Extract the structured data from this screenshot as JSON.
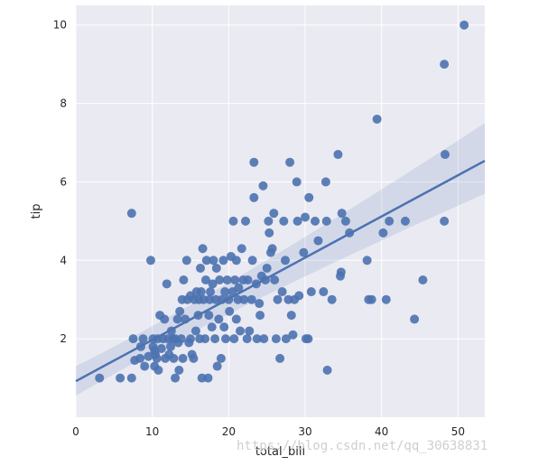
{
  "chart_data": {
    "type": "scatter",
    "title": "",
    "xlabel": "total_bill",
    "ylabel": "tip",
    "xlim": [
      0,
      53.5
    ],
    "ylim": [
      0.0,
      10.5
    ],
    "xticks": [
      "0",
      "10",
      "20",
      "30",
      "40",
      "50"
    ],
    "yticks": [
      "2",
      "4",
      "6",
      "8",
      "10"
    ],
    "grid": true,
    "colors": {
      "background": "#eaeaf2",
      "grid": "#ffffff",
      "points": "#4c72b0",
      "line": "#4c72b0",
      "band": "#4c72b0"
    },
    "regression": {
      "intercept": 0.92,
      "slope": 0.105,
      "ci_lower_at_xmin": 0.55,
      "ci_upper_at_xmin": 1.3,
      "ci_lower_at_xmax": 5.7,
      "ci_upper_at_xmax": 7.5
    },
    "points": [
      [
        3.1,
        1.0
      ],
      [
        5.8,
        1.0
      ],
      [
        7.3,
        1.0
      ],
      [
        7.3,
        5.2
      ],
      [
        7.5,
        2.0
      ],
      [
        7.7,
        1.45
      ],
      [
        8.4,
        1.5
      ],
      [
        8.5,
        1.8
      ],
      [
        8.8,
        2.0
      ],
      [
        9.0,
        1.3
      ],
      [
        9.5,
        1.55
      ],
      [
        9.8,
        4.0
      ],
      [
        10.1,
        1.8
      ],
      [
        10.1,
        2.0
      ],
      [
        10.3,
        1.7
      ],
      [
        10.3,
        1.3
      ],
      [
        10.4,
        1.6
      ],
      [
        10.6,
        1.5
      ],
      [
        10.7,
        2.0
      ],
      [
        10.8,
        1.2
      ],
      [
        11.0,
        2.6
      ],
      [
        11.2,
        1.75
      ],
      [
        11.4,
        2.0
      ],
      [
        11.6,
        2.5
      ],
      [
        11.7,
        1.5
      ],
      [
        11.9,
        3.4
      ],
      [
        12.0,
        2.0
      ],
      [
        12.2,
        1.6
      ],
      [
        12.4,
        1.8
      ],
      [
        12.5,
        2.2
      ],
      [
        12.7,
        2.0
      ],
      [
        12.8,
        1.5
      ],
      [
        13.0,
        2.0
      ],
      [
        13.0,
        1.0
      ],
      [
        13.3,
        2.5
      ],
      [
        13.4,
        1.9
      ],
      [
        13.5,
        1.2
      ],
      [
        13.6,
        2.7
      ],
      [
        13.8,
        2.0
      ],
      [
        13.9,
        3.0
      ],
      [
        14.0,
        1.5
      ],
      [
        14.1,
        3.5
      ],
      [
        14.3,
        2.5
      ],
      [
        14.5,
        4.0
      ],
      [
        14.6,
        3.0
      ],
      [
        14.8,
        1.9
      ],
      [
        15.0,
        2.0
      ],
      [
        15.0,
        3.1
      ],
      [
        15.2,
        1.6
      ],
      [
        15.4,
        1.5
      ],
      [
        15.5,
        3.0
      ],
      [
        15.7,
        2.2
      ],
      [
        15.8,
        3.2
      ],
      [
        16.0,
        2.6
      ],
      [
        16.1,
        3.0
      ],
      [
        16.2,
        2.0
      ],
      [
        16.3,
        3.8
      ],
      [
        16.4,
        3.2
      ],
      [
        16.5,
        1.0
      ],
      [
        16.6,
        4.3
      ],
      [
        16.7,
        3.0
      ],
      [
        16.9,
        2.0
      ],
      [
        17.0,
        3.5
      ],
      [
        17.1,
        4.0
      ],
      [
        17.3,
        1.0
      ],
      [
        17.4,
        2.6
      ],
      [
        17.5,
        3.0
      ],
      [
        17.6,
        3.2
      ],
      [
        17.8,
        2.3
      ],
      [
        17.9,
        3.4
      ],
      [
        18.0,
        4.0
      ],
      [
        18.2,
        2.0
      ],
      [
        18.3,
        3.0
      ],
      [
        18.4,
        3.8
      ],
      [
        18.5,
        1.3
      ],
      [
        18.7,
        2.5
      ],
      [
        18.8,
        3.5
      ],
      [
        19.0,
        1.5
      ],
      [
        19.1,
        3.0
      ],
      [
        19.3,
        4.0
      ],
      [
        19.4,
        2.3
      ],
      [
        19.5,
        3.2
      ],
      [
        19.6,
        2.0
      ],
      [
        19.8,
        3.5
      ],
      [
        20.0,
        3.0
      ],
      [
        20.1,
        2.7
      ],
      [
        20.3,
        4.1
      ],
      [
        20.5,
        3.2
      ],
      [
        20.6,
        5.0
      ],
      [
        20.7,
        2.0
      ],
      [
        20.8,
        3.5
      ],
      [
        21.0,
        4.0
      ],
      [
        21.0,
        2.5
      ],
      [
        21.2,
        3.0
      ],
      [
        21.3,
        3.3
      ],
      [
        21.5,
        2.2
      ],
      [
        21.7,
        4.3
      ],
      [
        21.9,
        3.5
      ],
      [
        22.0,
        3.0
      ],
      [
        22.2,
        5.0
      ],
      [
        22.4,
        2.0
      ],
      [
        22.5,
        3.5
      ],
      [
        22.7,
        2.2
      ],
      [
        23.0,
        3.0
      ],
      [
        23.1,
        4.0
      ],
      [
        23.3,
        5.6
      ],
      [
        23.3,
        6.5
      ],
      [
        23.6,
        3.4
      ],
      [
        23.7,
        2.0
      ],
      [
        24.0,
        2.9
      ],
      [
        24.1,
        2.6
      ],
      [
        24.3,
        3.6
      ],
      [
        24.5,
        5.9
      ],
      [
        24.6,
        2.0
      ],
      [
        24.8,
        3.5
      ],
      [
        25.0,
        3.8
      ],
      [
        25.2,
        5.0
      ],
      [
        25.3,
        4.7
      ],
      [
        25.5,
        4.2
      ],
      [
        25.7,
        4.3
      ],
      [
        25.9,
        5.2
      ],
      [
        26.0,
        3.5
      ],
      [
        26.2,
        2.0
      ],
      [
        26.4,
        3.0
      ],
      [
        26.7,
        1.5
      ],
      [
        27.0,
        3.2
      ],
      [
        27.2,
        5.0
      ],
      [
        27.4,
        4.0
      ],
      [
        27.5,
        2.0
      ],
      [
        27.8,
        3.0
      ],
      [
        28.0,
        6.5
      ],
      [
        28.2,
        2.6
      ],
      [
        28.4,
        2.1
      ],
      [
        28.6,
        3.0
      ],
      [
        28.9,
        6.0
      ],
      [
        29.0,
        5.0
      ],
      [
        29.2,
        3.1
      ],
      [
        29.8,
        4.2
      ],
      [
        30.0,
        5.1
      ],
      [
        30.1,
        2.0
      ],
      [
        30.4,
        2.0
      ],
      [
        30.5,
        5.6
      ],
      [
        30.8,
        3.2
      ],
      [
        31.3,
        5.0
      ],
      [
        31.7,
        4.5
      ],
      [
        32.4,
        3.2
      ],
      [
        32.7,
        6.0
      ],
      [
        32.8,
        5.0
      ],
      [
        32.9,
        1.2
      ],
      [
        33.5,
        3.0
      ],
      [
        34.3,
        6.7
      ],
      [
        34.6,
        3.6
      ],
      [
        34.7,
        3.7
      ],
      [
        34.8,
        5.2
      ],
      [
        35.3,
        5.0
      ],
      [
        35.8,
        4.7
      ],
      [
        38.1,
        4.0
      ],
      [
        38.3,
        3.0
      ],
      [
        38.7,
        3.0
      ],
      [
        39.4,
        7.6
      ],
      [
        40.2,
        4.7
      ],
      [
        40.6,
        3.0
      ],
      [
        41.0,
        5.0
      ],
      [
        43.1,
        5.0
      ],
      [
        44.3,
        2.5
      ],
      [
        45.4,
        3.5
      ],
      [
        48.2,
        5.0
      ],
      [
        48.2,
        9.0
      ],
      [
        48.3,
        6.7
      ],
      [
        50.8,
        10.0
      ]
    ]
  },
  "watermark": "https://blog.csdn.net/qq_30638831"
}
